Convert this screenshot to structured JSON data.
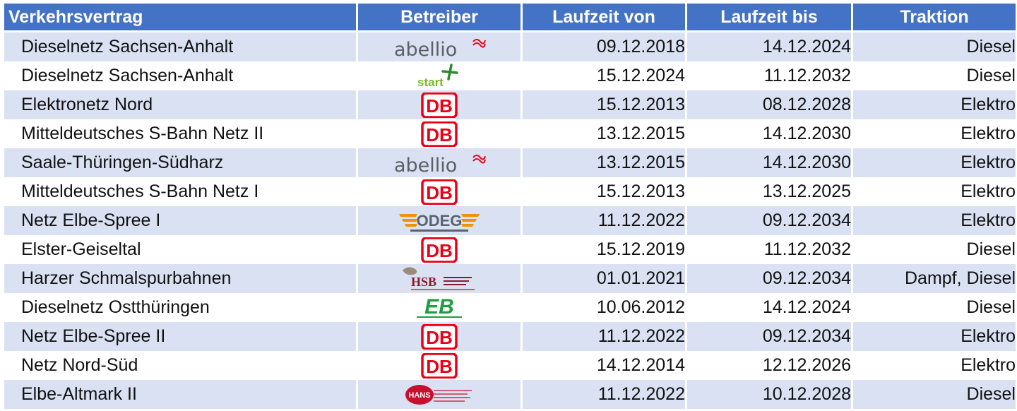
{
  "table": {
    "headers": [
      "Verkehrsvertrag",
      "Betreiber",
      "Laufzeit von",
      "Laufzeit bis",
      "Traktion"
    ],
    "rows": [
      {
        "vertrag": "Dieselnetz Sachsen-Anhalt",
        "betreiber_logo": "abellio",
        "von": "09.12.2018",
        "bis": "14.12.2024",
        "traktion": "Diesel"
      },
      {
        "vertrag": "Dieselnetz Sachsen-Anhalt",
        "betreiber_logo": "start",
        "von": "15.12.2024",
        "bis": "11.12.2032",
        "traktion": "Diesel"
      },
      {
        "vertrag": "Elektronetz Nord",
        "betreiber_logo": "db",
        "von": "15.12.2013",
        "bis": "08.12.2028",
        "traktion": "Elektro"
      },
      {
        "vertrag": "Mitteldeutsches S-Bahn Netz II",
        "betreiber_logo": "db",
        "von": "13.12.2015",
        "bis": "14.12.2030",
        "traktion": "Elektro"
      },
      {
        "vertrag": "Saale-Thüringen-Südharz",
        "betreiber_logo": "abellio",
        "von": "13.12.2015",
        "bis": "14.12.2030",
        "traktion": "Elektro"
      },
      {
        "vertrag": "Mitteldeutsches S-Bahn Netz I",
        "betreiber_logo": "db",
        "von": "15.12.2013",
        "bis": "13.12.2025",
        "traktion": "Elektro"
      },
      {
        "vertrag": "Netz Elbe-Spree I",
        "betreiber_logo": "odeg",
        "von": "11.12.2022",
        "bis": "09.12.2034",
        "traktion": "Elektro"
      },
      {
        "vertrag": "Elster-Geiseltal",
        "betreiber_logo": "db",
        "von": "15.12.2019",
        "bis": "11.12.2032",
        "traktion": "Diesel"
      },
      {
        "vertrag": "Harzer Schmalspurbahnen",
        "betreiber_logo": "hsb",
        "von": "01.01.2021",
        "bis": "09.12.2034",
        "traktion": "Dampf, Diesel"
      },
      {
        "vertrag": "Dieselnetz Ostthüringen",
        "betreiber_logo": "eb",
        "von": "10.06.2012",
        "bis": "14.12.2024",
        "traktion": "Diesel"
      },
      {
        "vertrag": "Netz Elbe-Spree II",
        "betreiber_logo": "db",
        "von": "11.12.2022",
        "bis": "09.12.2034",
        "traktion": "Elektro"
      },
      {
        "vertrag": "Netz Nord-Süd",
        "betreiber_logo": "db",
        "von": "14.12.2014",
        "bis": "12.12.2026",
        "traktion": "Elektro"
      },
      {
        "vertrag": "Elbe-Altmark II",
        "betreiber_logo": "hans",
        "von": "11.12.2022",
        "bis": "10.12.2028",
        "traktion": "Diesel"
      }
    ]
  },
  "logo_text": {
    "abellio": "abellio",
    "start": "start",
    "db": "DB",
    "odeg": "ODEG",
    "hsb": "HSB",
    "eb": "EB",
    "hans": "HANS"
  },
  "colors": {
    "header_bg": "#4472c4",
    "row_stripe": "#d9e1f2",
    "db_red": "#ec0016",
    "abellio_gray": "#5a6066",
    "start_green": "#7ab72e",
    "odeg_orange": "#f39200",
    "odeg_gray": "#596470",
    "eb_green": "#1e9e3e",
    "hsb_red": "#8c1a2b",
    "hans_red": "#c8102e"
  }
}
